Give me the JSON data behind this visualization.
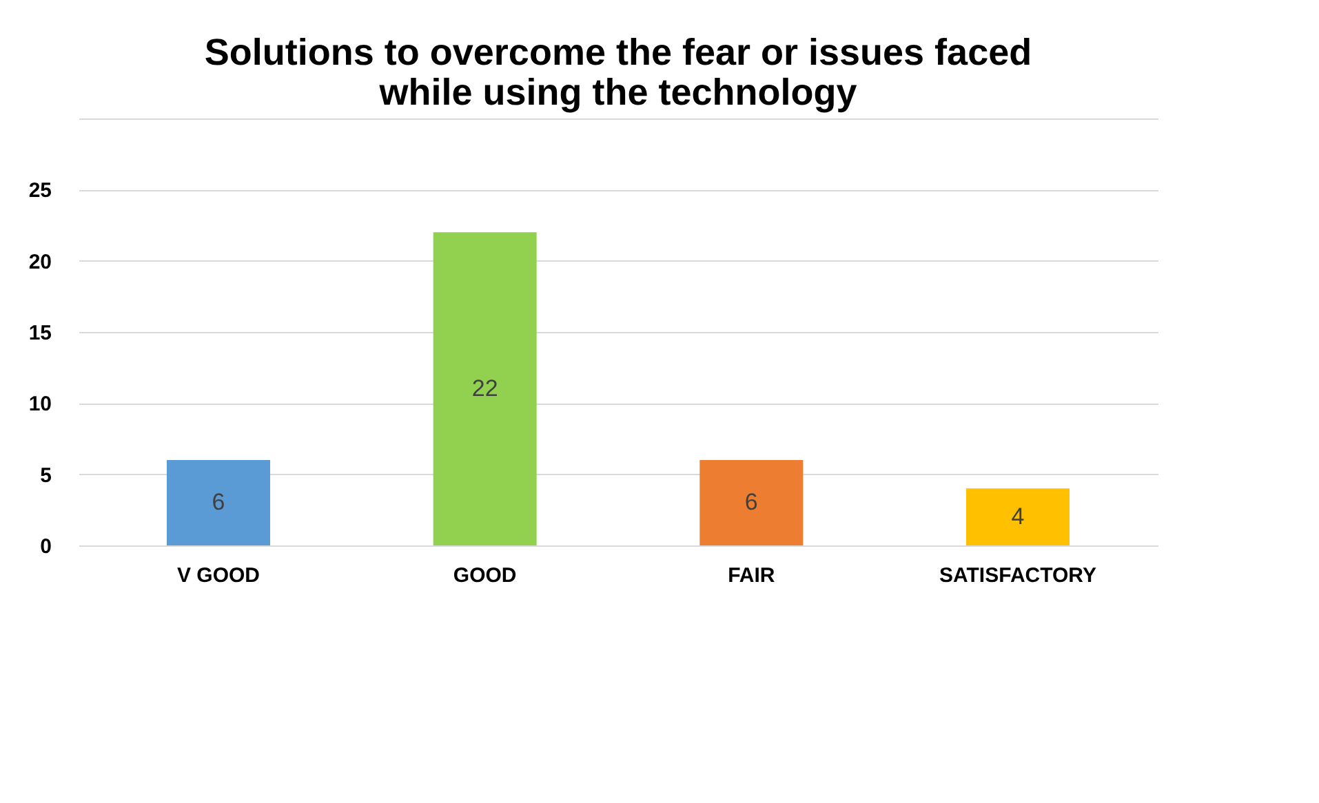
{
  "chart_data": {
    "type": "bar",
    "title": [
      "Solutions to overcome the fear or issues faced",
      "while using the technology"
    ],
    "categories": [
      "V GOOD",
      "GOOD",
      "FAIR",
      "SATISFACTORY"
    ],
    "values": [
      6,
      22,
      6,
      4
    ],
    "colors": [
      "#5b9bd5",
      "#92d050",
      "#ed7d31",
      "#ffc000"
    ],
    "ylim": [
      0,
      30
    ],
    "yticks": [
      0,
      5,
      10,
      15,
      20,
      25,
      {
        "value": 30,
        "label": null
      }
    ],
    "grid": "y",
    "data_labels": true
  }
}
